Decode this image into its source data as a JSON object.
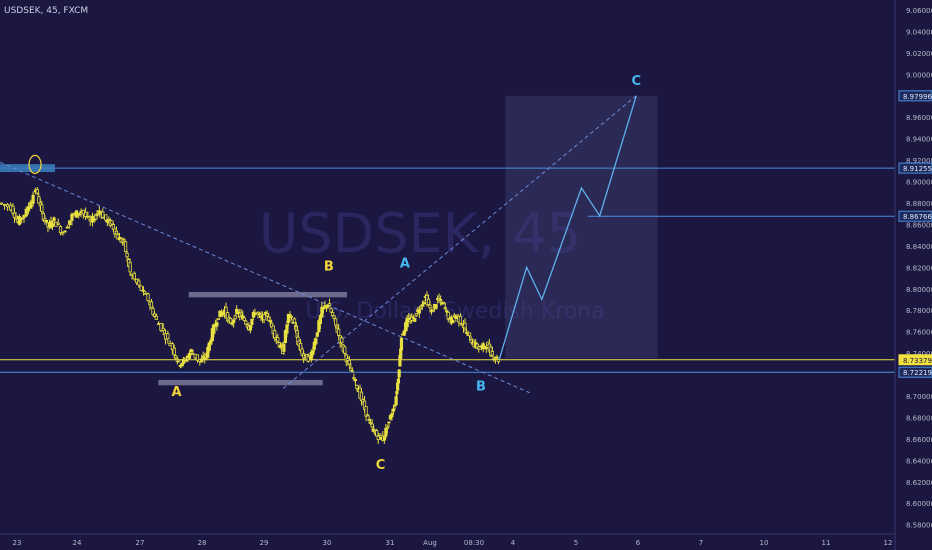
{
  "header": {
    "symbol": "USDSEK, 45, FXCM"
  },
  "watermark": {
    "ticker": "USDSEK, 45",
    "name": "U.S. Dollar / Swedish Krona"
  },
  "colors": {
    "background": "#1b1740",
    "candle": "#e8e040",
    "price_line": "#f0e040",
    "level_line": "#4a8fe0",
    "wave_yellow": "#f2d43a",
    "wave_blue": "#46b8f0",
    "text": "#cfcfe6",
    "grid_text": "#b8b8cc"
  },
  "chart_data": {
    "type": "candlestick",
    "symbol": "USDSEK",
    "timeframe": "45",
    "source": "FXCM",
    "ylim": [
      8.575,
      9.06
    ],
    "y_ticks": [
      "9.06000",
      "9.04000",
      "9.02000",
      "9.00000",
      "8.98000",
      "8.96000",
      "8.94000",
      "8.92000",
      "8.90000",
      "8.88000",
      "8.86000",
      "8.84000",
      "8.82000",
      "8.80000",
      "8.78000",
      "8.76000",
      "8.74000",
      "8.72000",
      "8.70000",
      "8.68000",
      "8.66000",
      "8.64000",
      "8.62000",
      "8.60000",
      "8.58000"
    ],
    "x_ticks": [
      "23",
      "24",
      "27",
      "28",
      "29",
      "30",
      "31",
      "Aug",
      "08:30",
      "4",
      "5",
      "6",
      "7",
      "10",
      "11",
      "12"
    ],
    "price_labels": [
      {
        "label": "8.97996",
        "value": 8.97996,
        "highlight": false
      },
      {
        "label": "8.91255",
        "value": 8.91255,
        "highlight": false
      },
      {
        "label": "8.86766",
        "value": 8.86766,
        "highlight": false
      },
      {
        "label": "8.73379",
        "value": 8.73379,
        "highlight": true
      },
      {
        "label": "8.72219",
        "value": 8.72219,
        "highlight": false
      }
    ],
    "horizontal_levels": [
      8.91255,
      8.73379,
      8.72219
    ],
    "close": 8.73379,
    "price_path": [
      {
        "x": 0,
        "y": 8.88
      },
      {
        "x": 0.4,
        "y": 8.876
      },
      {
        "x": 0.6,
        "y": 8.862
      },
      {
        "x": 0.9,
        "y": 8.872
      },
      {
        "x": 1.2,
        "y": 8.893
      },
      {
        "x": 1.4,
        "y": 8.87
      },
      {
        "x": 1.6,
        "y": 8.858
      },
      {
        "x": 1.8,
        "y": 8.864
      },
      {
        "x": 2.1,
        "y": 8.852
      },
      {
        "x": 2.4,
        "y": 8.868
      },
      {
        "x": 2.7,
        "y": 8.873
      },
      {
        "x": 3.0,
        "y": 8.862
      },
      {
        "x": 3.3,
        "y": 8.873
      },
      {
        "x": 3.5,
        "y": 8.864
      },
      {
        "x": 3.7,
        "y": 8.86
      },
      {
        "x": 3.9,
        "y": 8.848
      },
      {
        "x": 4.1,
        "y": 8.842
      },
      {
        "x": 4.3,
        "y": 8.815
      },
      {
        "x": 4.6,
        "y": 8.802
      },
      {
        "x": 4.9,
        "y": 8.79
      },
      {
        "x": 5.1,
        "y": 8.774
      },
      {
        "x": 5.4,
        "y": 8.76
      },
      {
        "x": 5.7,
        "y": 8.744
      },
      {
        "x": 5.9,
        "y": 8.73
      },
      {
        "x": 6.1,
        "y": 8.733
      },
      {
        "x": 6.3,
        "y": 8.742
      },
      {
        "x": 6.6,
        "y": 8.732
      },
      {
        "x": 6.8,
        "y": 8.738
      },
      {
        "x": 7.0,
        "y": 8.76
      },
      {
        "x": 7.2,
        "y": 8.775
      },
      {
        "x": 7.4,
        "y": 8.78
      },
      {
        "x": 7.6,
        "y": 8.766
      },
      {
        "x": 7.8,
        "y": 8.778
      },
      {
        "x": 8.0,
        "y": 8.773
      },
      {
        "x": 8.2,
        "y": 8.764
      },
      {
        "x": 8.4,
        "y": 8.779
      },
      {
        "x": 8.6,
        "y": 8.772
      },
      {
        "x": 8.8,
        "y": 8.776
      },
      {
        "x": 9.0,
        "y": 8.76
      },
      {
        "x": 9.2,
        "y": 8.748
      },
      {
        "x": 9.3,
        "y": 8.742
      },
      {
        "x": 9.5,
        "y": 8.775
      },
      {
        "x": 9.7,
        "y": 8.768
      },
      {
        "x": 9.8,
        "y": 8.75
      },
      {
        "x": 10.0,
        "y": 8.736
      },
      {
        "x": 10.2,
        "y": 8.735
      },
      {
        "x": 10.4,
        "y": 8.755
      },
      {
        "x": 10.6,
        "y": 8.78
      },
      {
        "x": 10.8,
        "y": 8.786
      },
      {
        "x": 11.0,
        "y": 8.77
      },
      {
        "x": 11.2,
        "y": 8.752
      },
      {
        "x": 11.4,
        "y": 8.735
      },
      {
        "x": 11.6,
        "y": 8.72
      },
      {
        "x": 11.8,
        "y": 8.705
      },
      {
        "x": 12.0,
        "y": 8.688
      },
      {
        "x": 12.2,
        "y": 8.672
      },
      {
        "x": 12.4,
        "y": 8.663
      },
      {
        "x": 12.6,
        "y": 8.66
      },
      {
        "x": 12.8,
        "y": 8.676
      },
      {
        "x": 13.0,
        "y": 8.694
      },
      {
        "x": 13.1,
        "y": 8.718
      },
      {
        "x": 13.2,
        "y": 8.755
      },
      {
        "x": 13.4,
        "y": 8.77
      },
      {
        "x": 13.6,
        "y": 8.772
      },
      {
        "x": 13.8,
        "y": 8.782
      },
      {
        "x": 14.0,
        "y": 8.792
      },
      {
        "x": 14.2,
        "y": 8.778
      },
      {
        "x": 14.4,
        "y": 8.79
      },
      {
        "x": 14.6,
        "y": 8.785
      },
      {
        "x": 14.8,
        "y": 8.77
      },
      {
        "x": 15.0,
        "y": 8.775
      },
      {
        "x": 15.2,
        "y": 8.768
      },
      {
        "x": 15.4,
        "y": 8.756
      },
      {
        "x": 15.6,
        "y": 8.748
      },
      {
        "x": 15.8,
        "y": 8.744
      },
      {
        "x": 16.0,
        "y": 8.748
      },
      {
        "x": 16.2,
        "y": 8.738
      },
      {
        "x": 16.4,
        "y": 8.734
      }
    ],
    "wave_labels": [
      {
        "text": "A",
        "x": 5.8,
        "y": 8.7,
        "color": "yellow"
      },
      {
        "text": "B",
        "x": 10.8,
        "y": 8.817,
        "color": "yellow"
      },
      {
        "text": "C",
        "x": 12.5,
        "y": 8.632,
        "color": "yellow"
      },
      {
        "text": "A",
        "x": 13.3,
        "y": 8.82,
        "color": "blue"
      },
      {
        "text": "B",
        "x": 15.8,
        "y": 8.705,
        "color": "blue"
      },
      {
        "text": "C",
        "x": 20.9,
        "y": 8.99,
        "color": "blue"
      }
    ],
    "projection": [
      {
        "x": 16.4,
        "y": 8.734
      },
      {
        "x": 17.3,
        "y": 8.82
      },
      {
        "x": 17.8,
        "y": 8.79
      },
      {
        "x": 19.1,
        "y": 8.894
      },
      {
        "x": 19.7,
        "y": 8.868
      },
      {
        "x": 20.9,
        "y": 8.98
      }
    ],
    "trendlines": [
      {
        "from": {
          "x": 0.0,
          "y": 8.918
        },
        "to": {
          "x": 17.4,
          "y": 8.703
        },
        "style": "dashed"
      },
      {
        "from": {
          "x": 9.3,
          "y": 8.707
        },
        "to": {
          "x": 20.9,
          "y": 8.98
        },
        "style": "dashed"
      }
    ],
    "range_boxes": [
      {
        "from": {
          "x": 6.2,
          "y": 8.797
        },
        "to": {
          "x": 11.4,
          "y": 8.792
        }
      },
      {
        "from": {
          "x": 5.2,
          "y": 8.715
        },
        "to": {
          "x": 10.6,
          "y": 8.71
        }
      }
    ],
    "target_zone": {
      "from": {
        "x": 16.6,
        "y": 8.98
      },
      "to": {
        "x": 21.6,
        "y": 8.735
      }
    },
    "marker_circle": {
      "x": 1.15,
      "y": 8.916
    },
    "x_range": [
      0,
      29.4
    ]
  }
}
